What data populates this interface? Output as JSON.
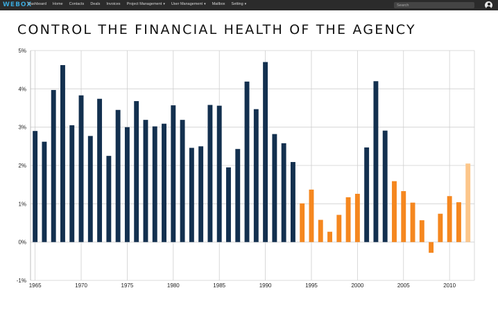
{
  "app": {
    "logo": "WEBOX"
  },
  "nav": {
    "items": [
      {
        "label": "Dashboard",
        "dropdown": false
      },
      {
        "label": "Home",
        "dropdown": false
      },
      {
        "label": "Contacts",
        "dropdown": false
      },
      {
        "label": "Deals",
        "dropdown": false
      },
      {
        "label": "Invoices",
        "dropdown": false
      },
      {
        "label": "Project Management",
        "dropdown": true
      },
      {
        "label": "User Management",
        "dropdown": true
      },
      {
        "label": "Mailbox",
        "dropdown": false
      },
      {
        "label": "Setting",
        "dropdown": true
      }
    ],
    "search_placeholder": "Search",
    "avatar_icon": "user-icon"
  },
  "page": {
    "title": "CONTROL THE FINANCIAL HEALTH OF THE AGENCY"
  },
  "colors": {
    "dark": "#13304f",
    "orange": "#f5871f",
    "light_orange": "#fcc68a",
    "topbar": "#2b2b2b"
  },
  "chart_data": {
    "type": "bar",
    "x": [
      1965,
      1966,
      1967,
      1968,
      1969,
      1970,
      1971,
      1972,
      1973,
      1974,
      1975,
      1976,
      1977,
      1978,
      1979,
      1980,
      1981,
      1982,
      1983,
      1984,
      1985,
      1986,
      1987,
      1988,
      1989,
      1990,
      1991,
      1992,
      1993,
      1994,
      1995,
      1996,
      1997,
      1998,
      1999,
      2000,
      2001,
      2002,
      2003,
      2004,
      2005,
      2006,
      2007,
      2008,
      2009,
      2010,
      2011,
      2012
    ],
    "values": [
      2.9,
      2.62,
      3.97,
      4.62,
      3.05,
      3.83,
      2.77,
      3.74,
      2.25,
      3.45,
      3.0,
      3.68,
      3.19,
      3.02,
      3.09,
      3.57,
      3.19,
      2.46,
      2.5,
      3.58,
      3.56,
      1.95,
      2.43,
      4.19,
      3.47,
      4.7,
      2.82,
      2.58,
      2.09,
      1.01,
      1.37,
      0.58,
      0.27,
      0.71,
      1.17,
      1.26,
      2.47,
      4.2,
      2.91,
      1.59,
      1.33,
      1.03,
      0.57,
      -0.28,
      0.74,
      1.2,
      1.04,
      2.05
    ],
    "bar_color_groups": [
      "dark",
      "dark",
      "dark",
      "dark",
      "dark",
      "dark",
      "dark",
      "dark",
      "dark",
      "dark",
      "dark",
      "dark",
      "dark",
      "dark",
      "dark",
      "dark",
      "dark",
      "dark",
      "dark",
      "dark",
      "dark",
      "dark",
      "dark",
      "dark",
      "dark",
      "dark",
      "dark",
      "dark",
      "dark",
      "orange",
      "orange",
      "orange",
      "orange",
      "orange",
      "orange",
      "orange",
      "dark",
      "dark",
      "dark",
      "orange",
      "orange",
      "orange",
      "orange",
      "orange",
      "orange",
      "orange",
      "orange",
      "light_orange"
    ],
    "y_ticks": [
      "-1%",
      "0%",
      "1%",
      "2%",
      "3%",
      "4%",
      "5%"
    ],
    "y_tick_values": [
      -1,
      0,
      1,
      2,
      3,
      4,
      5
    ],
    "x_ticks": [
      "1965",
      "1970",
      "1975",
      "1980",
      "1985",
      "1990",
      "1995",
      "2000",
      "2005",
      "2010"
    ],
    "x_tick_values": [
      1965,
      1970,
      1975,
      1980,
      1985,
      1990,
      1995,
      2000,
      2005,
      2010
    ],
    "ylim": [
      -1,
      5
    ],
    "xlim": [
      1964.5,
      2012.7
    ],
    "grid": true,
    "title": "",
    "xlabel": "",
    "ylabel": ""
  }
}
